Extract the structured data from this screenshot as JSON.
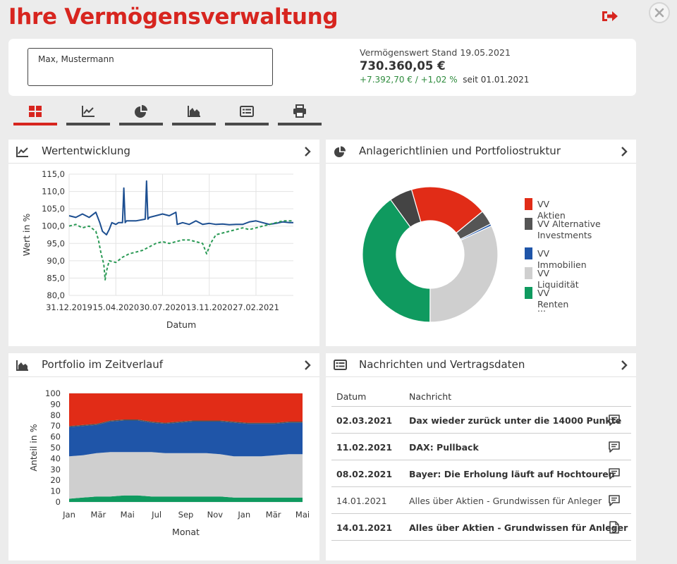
{
  "header": {
    "title": "Ihre Vermögensverwaltung"
  },
  "summary": {
    "customer_name": "Max, Mustermann",
    "value_label": "Vermögenswert Stand 19.05.2021",
    "value_amount": "730.360,05 €",
    "value_change": "+7.392,70 € / +1,02 %",
    "value_since": "seit 01.01.2021"
  },
  "tabs": [
    {
      "icon": "dashboard-grid-icon",
      "active": true
    },
    {
      "icon": "line-chart-icon",
      "active": false
    },
    {
      "icon": "pie-chart-icon",
      "active": false
    },
    {
      "icon": "area-chart-icon",
      "active": false
    },
    {
      "icon": "news-list-icon",
      "active": false
    },
    {
      "icon": "printer-icon",
      "active": false
    }
  ],
  "colors": {
    "brand_red": "#d7251f",
    "aktien": "#e12c17",
    "alternative": "#555555",
    "immobilien": "#1f55a8",
    "liquiditaet": "#cfcfcf",
    "renten": "#0f9a5f",
    "line_blue": "#1d4f91",
    "line_green": "#2a9a55",
    "positive": "#2e8b3d"
  },
  "panels": {
    "wertentwicklung": {
      "title": "Wertentwicklung"
    },
    "anlage": {
      "title": "Anlagerichtlinien und Portfoliostruktur"
    },
    "portfolio": {
      "title": "Portfolio im Zeitverlauf"
    },
    "news": {
      "title": "Nachrichten und Vertragsdaten"
    }
  },
  "chart_data": [
    {
      "type": "line",
      "xlabel": "Datum",
      "ylabel": "Wert in %",
      "ylim": [
        80,
        115
      ],
      "yticks": [
        "115,0",
        "110,0",
        "105,0",
        "100,0",
        "95,0",
        "90,0",
        "85,0",
        "80,0"
      ],
      "xtick_labels": [
        "31.12.2019",
        "15.04.2020",
        "30.07.2020",
        "13.11.2020",
        "27.02.2021"
      ],
      "xticks": [
        0,
        3.5,
        7,
        10.5,
        14
      ],
      "xlim": [
        0,
        16.8
      ],
      "grid": true,
      "series": [
        {
          "style": "solid",
          "x": [
            0,
            0.5,
            1,
            1.5,
            2,
            2.3,
            2.5,
            2.8,
            3,
            3.2,
            3.5,
            3.7,
            4,
            4.1,
            4.2,
            4.3,
            4.5,
            5,
            5.7,
            5.8,
            5.9,
            6,
            6.5,
            7,
            7.5,
            8,
            8.1,
            8.5,
            9,
            9.5,
            10,
            10.5,
            11,
            11.5,
            12,
            12.5,
            13,
            13.5,
            14,
            14.5,
            15,
            15.5,
            16,
            16.5,
            16.8
          ],
          "y": [
            103,
            102.5,
            103.5,
            102.5,
            104,
            101,
            98.5,
            97.5,
            99,
            101,
            100.5,
            101,
            101,
            111,
            101,
            101.5,
            101.5,
            101.5,
            102,
            113,
            102,
            102.5,
            103,
            103.5,
            103,
            104,
            100.5,
            101,
            100.5,
            101.5,
            100.5,
            100.8,
            100.5,
            100.6,
            100.4,
            100.5,
            100.5,
            101.2,
            101.5,
            101,
            100.5,
            100.8,
            101.2,
            101,
            101
          ]
        },
        {
          "style": "dashed",
          "x": [
            0,
            0.5,
            1,
            1.5,
            2,
            2.2,
            2.4,
            2.6,
            2.7,
            2.8,
            3,
            3.5,
            4,
            4.5,
            5,
            5.5,
            6,
            6.5,
            7,
            7.5,
            8,
            8.5,
            9,
            9.5,
            10,
            10.3,
            10.6,
            11,
            11.5,
            12,
            12.5,
            13,
            13.5,
            14,
            14.5,
            15,
            15.5,
            16,
            16.5,
            16.8
          ],
          "y": [
            100,
            100.5,
            99.5,
            100,
            98.5,
            96,
            92,
            89,
            84.5,
            87,
            90,
            89.5,
            91,
            92,
            92.5,
            93,
            94,
            95,
            95.5,
            95,
            95.5,
            96,
            96,
            95.5,
            95,
            92,
            95,
            97.5,
            98,
            98.5,
            99,
            99.5,
            99,
            99.5,
            100,
            100.5,
            101,
            101.5,
            101.5,
            101.5
          ]
        }
      ]
    },
    {
      "type": "pie",
      "categories": [
        "VV Aktien",
        "VV Alternative Investments",
        "VV Immobilien",
        "VV Liquidität",
        "VV Renten"
      ],
      "values": [
        18.5,
        3.5,
        0.5,
        32,
        40
      ],
      "colors": [
        "#e12c17",
        "#555555",
        "#1f55a8",
        "#cfcfcf",
        "#0f9a5f"
      ],
      "legend_position": "right",
      "legend_more": "...",
      "segments": [
        {
          "name": "VV Aktien",
          "value": 18.5,
          "color": "#e12c17"
        },
        {
          "name": "VV Alternative Investments",
          "value": 3.5,
          "color": "#555555"
        },
        {
          "name": "VV Immobilien",
          "value": 0.5,
          "color": "#1f55a8"
        },
        {
          "name": "VV Liquidität",
          "value": 32,
          "color": "#cfcfcf"
        },
        {
          "name": "VV Renten",
          "value": 40,
          "color": "#0f9a5f"
        },
        {
          "name": "",
          "value": 5.5,
          "color": "#444444"
        }
      ]
    },
    {
      "type": "area",
      "xlabel": "Monat",
      "ylabel": "Anteil in %",
      "ylim": [
        0,
        100
      ],
      "yticks": [
        "100",
        "90",
        "80",
        "70",
        "60",
        "50",
        "40",
        "30",
        "20",
        "10",
        "0"
      ],
      "categories": [
        "Jan",
        "Mär",
        "Mai",
        "Jul",
        "Sep",
        "Nov",
        "Jan",
        "Mär",
        "Mai"
      ],
      "x": [
        0,
        0.5,
        1,
        1.5,
        2,
        2.5,
        3,
        3.5,
        4,
        4.5,
        5,
        5.5,
        6,
        6.5,
        7,
        7.5,
        8,
        8.5
      ],
      "series": [
        {
          "name": "",
          "color": "#0f9a5f",
          "values": [
            3,
            4,
            5,
            5,
            6,
            6,
            5,
            5,
            5,
            5,
            5,
            5,
            4,
            4,
            4,
            4,
            4,
            4
          ]
        },
        {
          "name": "",
          "color": "#cfcfcf",
          "values": [
            39,
            39,
            40,
            41,
            40,
            40,
            41,
            40,
            40,
            40,
            40,
            39,
            38,
            38,
            38,
            39,
            40,
            40
          ]
        },
        {
          "name": "",
          "color": "#1f55a8",
          "values": [
            27,
            27,
            26,
            28,
            29,
            29,
            27,
            27,
            28,
            29,
            29,
            30,
            31,
            30,
            30,
            29,
            29,
            29
          ]
        },
        {
          "name": "",
          "color": "#555555",
          "values": [
            1,
            1,
            1,
            1,
            1,
            1,
            1,
            1,
            1,
            1,
            1,
            1,
            1,
            1,
            1,
            1,
            1,
            1
          ]
        },
        {
          "name": "",
          "color": "#e12c17",
          "values": [
            30,
            29,
            28,
            25,
            24,
            24,
            26,
            27,
            26,
            25,
            25,
            25,
            26,
            27,
            27,
            27,
            26,
            26
          ]
        }
      ]
    }
  ],
  "news": {
    "col_date": "Datum",
    "col_msg": "Nachricht",
    "rows": [
      {
        "date": "02.03.2021",
        "msg": "Dax wieder zurück unter die 14000 Punkte",
        "icon": "message-icon",
        "read": false
      },
      {
        "date": "11.02.2021",
        "msg": "DAX: Pullback",
        "icon": "message-icon",
        "read": false
      },
      {
        "date": "08.02.2021",
        "msg": "Bayer: Die Erholung läuft auf Hochtouren",
        "icon": "message-icon",
        "read": false
      },
      {
        "date": "14.01.2021",
        "msg": "Alles über Aktien - Grundwissen für Anleger",
        "icon": "message-icon",
        "read": true
      },
      {
        "date": "14.01.2021",
        "msg": "Alles über Aktien - Grundwissen für Anleger",
        "icon": "pdf-icon",
        "read": false
      }
    ]
  }
}
